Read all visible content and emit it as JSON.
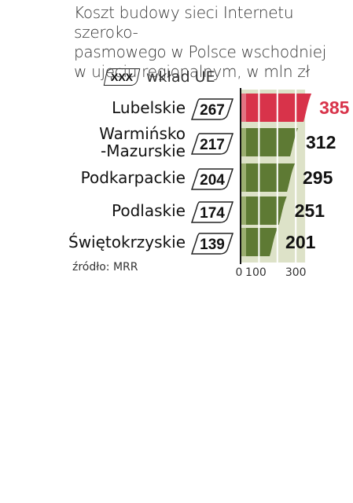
{
  "title": "Koszt budowy sieci Internetu szeroko-pasmowego w Polsce wschodniej w ujęciu regionalnym, w mln zł",
  "title_lines": [
    "Koszt budowy sieci Internetu szeroko-",
    "pasmowego w Polsce wschodniej",
    "w ujęciu regionalnym, w mln zł"
  ],
  "legend": {
    "box_text": "XXX",
    "label": "wkład UE"
  },
  "source": "źródło: MRR",
  "colors": {
    "highlight": "#d8334a",
    "highlight_light": "#e8909a",
    "bar": "#5e7a34",
    "bar_light": "#b5c48a",
    "grid_bg": "#dde2c8"
  },
  "chart_data": {
    "type": "bar",
    "orientation": "horizontal",
    "categories": [
      "Lubelskie",
      "Warmińsko\n-Mazurskie",
      "Podkarpackie",
      "Podlaskie",
      "Świętokrzyskie"
    ],
    "category_lines": [
      [
        "Lubelskie"
      ],
      [
        "Warmińsko",
        "-Mazurskie"
      ],
      [
        "Podkarpackie"
      ],
      [
        "Podlaskie"
      ],
      [
        "Świętokrzyskie"
      ]
    ],
    "series": [
      {
        "name": "Koszt budowy",
        "values": [
          385,
          312,
          295,
          251,
          201
        ]
      },
      {
        "name": "wkład UE",
        "values": [
          267,
          217,
          204,
          174,
          139
        ]
      }
    ],
    "highlight_index": 0,
    "ticks": [
      0,
      100,
      300
    ],
    "xlim": [
      0,
      385
    ],
    "grid": true
  }
}
